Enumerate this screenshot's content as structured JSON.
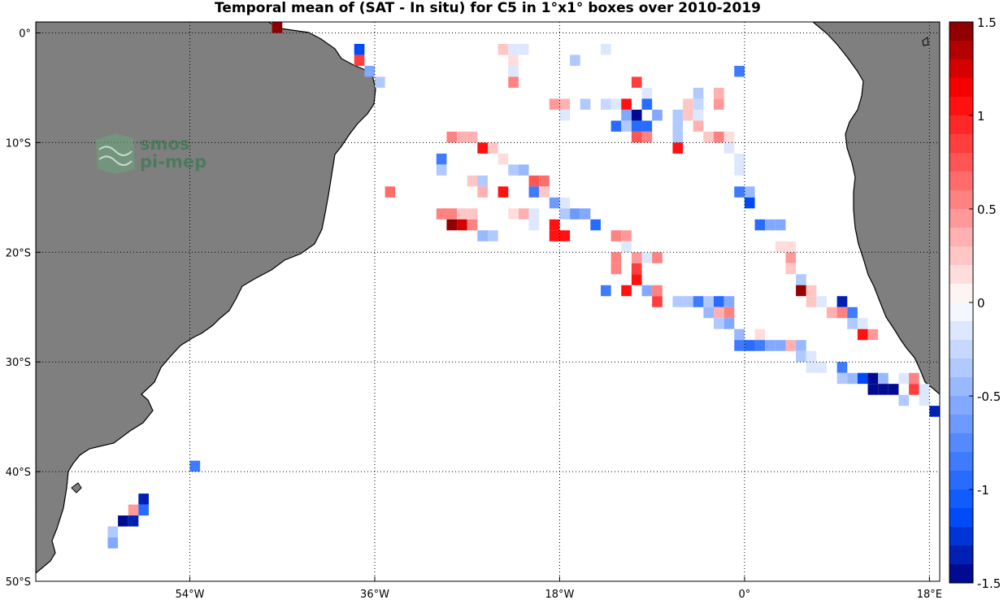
{
  "title": "Temporal mean of (SAT - In situ) for C5 in 1°x1° boxes over 2010-2019",
  "logo": {
    "line1": "smos",
    "line2": "pi-mep"
  },
  "chart_data": {
    "type": "heatmap",
    "title": "Temporal mean of (SAT - In situ) for C5 in 1°x1° boxes over 2010-2019",
    "lon_range": [
      -69,
      19
    ],
    "lat_range": [
      -50,
      1
    ],
    "x_ticks": [
      {
        "v": -54,
        "label": "54°W"
      },
      {
        "v": -36,
        "label": "36°W"
      },
      {
        "v": -18,
        "label": "18°W"
      },
      {
        "v": 0,
        "label": "0°"
      },
      {
        "v": 18,
        "label": "18°E"
      }
    ],
    "y_ticks": [
      {
        "v": 0,
        "label": "0°"
      },
      {
        "v": -10,
        "label": "10°S"
      },
      {
        "v": -20,
        "label": "20°S"
      },
      {
        "v": -30,
        "label": "30°S"
      },
      {
        "v": -40,
        "label": "40°S"
      },
      {
        "v": -50,
        "label": "50°S"
      }
    ],
    "grid": true,
    "colorbar": {
      "min": -1.5,
      "max": 1.5,
      "levels": 30,
      "ticks": [
        {
          "v": 1.5,
          "label": "1.5"
        },
        {
          "v": 1,
          "label": "1"
        },
        {
          "v": 0.5,
          "label": "0.5"
        },
        {
          "v": 0,
          "label": "0"
        },
        {
          "v": -0.5,
          "label": "-0.5"
        },
        {
          "v": -1,
          "label": "-1"
        },
        {
          "v": -1.5,
          "label": "-1.5"
        }
      ]
    },
    "cells": [
      [
        -45.5,
        0.5,
        1.5
      ],
      [
        -37.5,
        -1.5,
        -1.2
      ],
      [
        -37.5,
        -2.5,
        0.9
      ],
      [
        -36.5,
        -3.5,
        -0.6
      ],
      [
        -35.5,
        -4.5,
        -0.3
      ],
      [
        -23.5,
        -1.5,
        0.2
      ],
      [
        -22.5,
        -1.5,
        -0.1
      ],
      [
        -21.5,
        -1.5,
        -0.2
      ],
      [
        -22.5,
        -2.5,
        0.15
      ],
      [
        -22.5,
        -3.5,
        -0.2
      ],
      [
        -22.5,
        -4.5,
        0.5
      ],
      [
        -16.5,
        -2.5,
        -0.4
      ],
      [
        -13.5,
        -1.5,
        -0.2
      ],
      [
        -0.5,
        -3.5,
        -0.8
      ],
      [
        -10.5,
        -4.5,
        0.9
      ],
      [
        -9.5,
        -5.5,
        -0.2
      ],
      [
        -4.5,
        -5.5,
        -0.3
      ],
      [
        -2.5,
        -5.5,
        0.3
      ],
      [
        -18.5,
        -6.5,
        0.4
      ],
      [
        -17.5,
        -6.5,
        0.3
      ],
      [
        -15.5,
        -6.5,
        -0.4
      ],
      [
        -13.5,
        -6.5,
        -0.25
      ],
      [
        -12.5,
        -6.5,
        -0.2
      ],
      [
        -11.5,
        -6.5,
        1.0
      ],
      [
        -9.5,
        -6.5,
        -0.9
      ],
      [
        -5.5,
        -6.5,
        0.2
      ],
      [
        -4.5,
        -6.5,
        -0.25
      ],
      [
        -2.5,
        -6.5,
        0.4
      ],
      [
        -17.5,
        -7.5,
        -0.1
      ],
      [
        -11.5,
        -7.5,
        -0.6
      ],
      [
        -10.5,
        -7.5,
        -1.5
      ],
      [
        -8.5,
        -7.5,
        -0.6
      ],
      [
        -6.5,
        -7.5,
        -0.4
      ],
      [
        -5.5,
        -7.5,
        0.2
      ],
      [
        -4.5,
        -7.5,
        -0.2
      ],
      [
        -12.5,
        -8.5,
        -1.0
      ],
      [
        -11.5,
        -8.5,
        -0.4
      ],
      [
        -10.5,
        -8.5,
        -0.9
      ],
      [
        -9.5,
        -8.5,
        -1.0
      ],
      [
        -6.5,
        -8.5,
        -0.4
      ],
      [
        -4.5,
        -8.5,
        0.3
      ],
      [
        -28.5,
        -9.5,
        0.5
      ],
      [
        -27.5,
        -9.5,
        0.3
      ],
      [
        -26.5,
        -9.5,
        0.3
      ],
      [
        -10.5,
        -9.5,
        0.7
      ],
      [
        -9.5,
        -9.5,
        0.5
      ],
      [
        -6.5,
        -9.5,
        -0.3
      ],
      [
        -3.5,
        -9.5,
        0.25
      ],
      [
        -2.5,
        -9.5,
        0.5
      ],
      [
        -1.5,
        -9.5,
        0.1
      ],
      [
        -25.5,
        -10.5,
        1.0
      ],
      [
        -24.5,
        -10.5,
        0.2
      ],
      [
        -6.5,
        -10.5,
        1.0
      ],
      [
        -1.5,
        -10.5,
        -0.1
      ],
      [
        -29.5,
        -11.5,
        -0.8
      ],
      [
        -23.5,
        -11.5,
        0.15
      ],
      [
        -0.5,
        -11.5,
        -0.1
      ],
      [
        -29.5,
        -12.5,
        -0.3
      ],
      [
        -22.5,
        -12.5,
        -0.4
      ],
      [
        -21.5,
        -12.5,
        -0.5
      ],
      [
        -0.5,
        -12.5,
        -0.2
      ],
      [
        -26.5,
        -13.5,
        0.2
      ],
      [
        -25.5,
        -13.5,
        -0.3
      ],
      [
        -20.5,
        -13.5,
        0.7
      ],
      [
        -19.5,
        -13.5,
        0.6
      ],
      [
        -34.5,
        -14.5,
        0.6
      ],
      [
        -25.5,
        -14.5,
        0.3
      ],
      [
        -23.5,
        -14.5,
        1.0
      ],
      [
        -20.5,
        -14.5,
        -0.8
      ],
      [
        -19.5,
        -14.5,
        0.25
      ],
      [
        -0.5,
        -14.5,
        -0.8
      ],
      [
        0.5,
        -14.5,
        -0.5
      ],
      [
        -18.5,
        -15.5,
        -0.7
      ],
      [
        -17.5,
        -15.5,
        -0.2
      ],
      [
        0.5,
        -15.5,
        -1.2
      ],
      [
        -29.5,
        -16.5,
        0.5
      ],
      [
        -28.5,
        -16.5,
        0.5
      ],
      [
        -27.5,
        -16.5,
        0.2
      ],
      [
        -26.5,
        -16.5,
        0.2
      ],
      [
        -22.5,
        -16.5,
        0.15
      ],
      [
        -21.5,
        -16.5,
        0.3
      ],
      [
        -20.5,
        -16.5,
        -0.2
      ],
      [
        -17.5,
        -16.5,
        -0.3
      ],
      [
        -16.5,
        -16.5,
        -0.7
      ],
      [
        -15.5,
        -16.5,
        -0.6
      ],
      [
        -28.5,
        -17.5,
        1.5
      ],
      [
        -27.5,
        -17.5,
        1.3
      ],
      [
        -26.5,
        -17.5,
        0.5
      ],
      [
        -20.5,
        -17.5,
        -0.1
      ],
      [
        -18.5,
        -17.5,
        1.0
      ],
      [
        -14.5,
        -17.5,
        -1.0
      ],
      [
        1.5,
        -17.5,
        -0.9
      ],
      [
        2.5,
        -17.5,
        -0.6
      ],
      [
        3.5,
        -17.5,
        -0.6
      ],
      [
        -25.5,
        -18.5,
        -0.5
      ],
      [
        -24.5,
        -18.5,
        -0.3
      ],
      [
        -18.5,
        -18.5,
        1.0
      ],
      [
        -17.5,
        -18.5,
        1.0
      ],
      [
        -12.5,
        -18.5,
        0.5
      ],
      [
        -11.5,
        -18.5,
        0.4
      ],
      [
        -11.5,
        -19.5,
        -0.1
      ],
      [
        3.5,
        -19.5,
        0.15
      ],
      [
        4.5,
        -19.5,
        0.15
      ],
      [
        -12.5,
        -20.5,
        0.5
      ],
      [
        -10.5,
        -20.5,
        0.4
      ],
      [
        -9.5,
        -20.5,
        -0.2
      ],
      [
        -8.5,
        -20.5,
        0.5
      ],
      [
        4.5,
        -20.5,
        0.4
      ],
      [
        -12.5,
        -21.5,
        0.5
      ],
      [
        -10.5,
        -21.5,
        0.9
      ],
      [
        4.5,
        -21.5,
        0.2
      ],
      [
        -10.5,
        -22.5,
        1.0
      ],
      [
        5.5,
        -22.5,
        -0.4
      ],
      [
        -13.5,
        -23.5,
        -0.8
      ],
      [
        -11.5,
        -23.5,
        1.0
      ],
      [
        -9.5,
        -23.5,
        -0.6
      ],
      [
        -8.5,
        -23.5,
        0.5
      ],
      [
        5.5,
        -23.5,
        1.5
      ],
      [
        6.5,
        -23.5,
        0.2
      ],
      [
        -8.5,
        -24.5,
        0.8
      ],
      [
        -6.5,
        -24.5,
        -0.4
      ],
      [
        -5.5,
        -24.5,
        -0.4
      ],
      [
        -4.5,
        -24.5,
        -0.8
      ],
      [
        -3.5,
        -24.5,
        -0.4
      ],
      [
        -2.5,
        -24.5,
        -1.0
      ],
      [
        -1.5,
        -24.5,
        -0.6
      ],
      [
        6.5,
        -24.5,
        0.2
      ],
      [
        7.5,
        -24.5,
        -0.1
      ],
      [
        9.5,
        -24.5,
        -1.3
      ],
      [
        -3.5,
        -25.5,
        -0.5
      ],
      [
        -2.5,
        -25.5,
        0.3
      ],
      [
        -1.5,
        -25.5,
        0.5
      ],
      [
        8.5,
        -25.5,
        0.3
      ],
      [
        9.5,
        -25.5,
        0.5
      ],
      [
        10.5,
        -25.5,
        -0.8
      ],
      [
        -2.5,
        -26.5,
        -0.4
      ],
      [
        -1.5,
        -26.5,
        -0.6
      ],
      [
        10.5,
        -26.5,
        -0.4
      ],
      [
        11.5,
        -26.5,
        -0.2
      ],
      [
        -0.5,
        -27.5,
        -0.5
      ],
      [
        1.5,
        -27.5,
        0.15
      ],
      [
        11.5,
        -27.5,
        1.0
      ],
      [
        12.5,
        -27.5,
        0.4
      ],
      [
        -0.5,
        -28.5,
        -0.8
      ],
      [
        0.5,
        -28.5,
        -1.0
      ],
      [
        1.5,
        -28.5,
        -0.8
      ],
      [
        2.5,
        -28.5,
        -0.6
      ],
      [
        3.5,
        -28.5,
        -0.6
      ],
      [
        4.5,
        -28.5,
        0.3
      ],
      [
        5.5,
        -28.5,
        -0.5
      ],
      [
        5.5,
        -29.5,
        -0.3
      ],
      [
        6.5,
        -29.5,
        -0.2
      ],
      [
        6.5,
        -30.5,
        -0.2
      ],
      [
        7.5,
        -30.5,
        -0.2
      ],
      [
        9.5,
        -30.5,
        -0.8
      ],
      [
        9.5,
        -31.5,
        -0.3
      ],
      [
        10.5,
        -31.5,
        -0.5
      ],
      [
        11.5,
        -31.5,
        -1.1
      ],
      [
        12.5,
        -31.5,
        -1.5
      ],
      [
        13.5,
        -31.5,
        -0.5
      ],
      [
        15.5,
        -31.5,
        -0.2
      ],
      [
        16.5,
        -31.5,
        0.5
      ],
      [
        12.5,
        -32.5,
        -1.5
      ],
      [
        13.5,
        -32.5,
        -1.5
      ],
      [
        14.5,
        -32.5,
        -1.5
      ],
      [
        16.5,
        -32.5,
        0.9
      ],
      [
        17.5,
        -32.5,
        -0.2
      ],
      [
        15.5,
        -33.5,
        -0.4
      ],
      [
        17.5,
        -33.5,
        -0.2
      ],
      [
        18.5,
        -34.5,
        -1.4
      ],
      [
        -53.5,
        -39.5,
        -0.8
      ],
      [
        -58.5,
        -42.5,
        -1.3
      ],
      [
        -59.5,
        -43.5,
        0.4
      ],
      [
        -58.5,
        -43.5,
        -0.9
      ],
      [
        -60.5,
        -44.5,
        -1.5
      ],
      [
        -59.5,
        -44.5,
        -1.3
      ],
      [
        -61.5,
        -45.5,
        -0.4
      ],
      [
        -61.5,
        -46.5,
        -0.6
      ]
    ]
  }
}
